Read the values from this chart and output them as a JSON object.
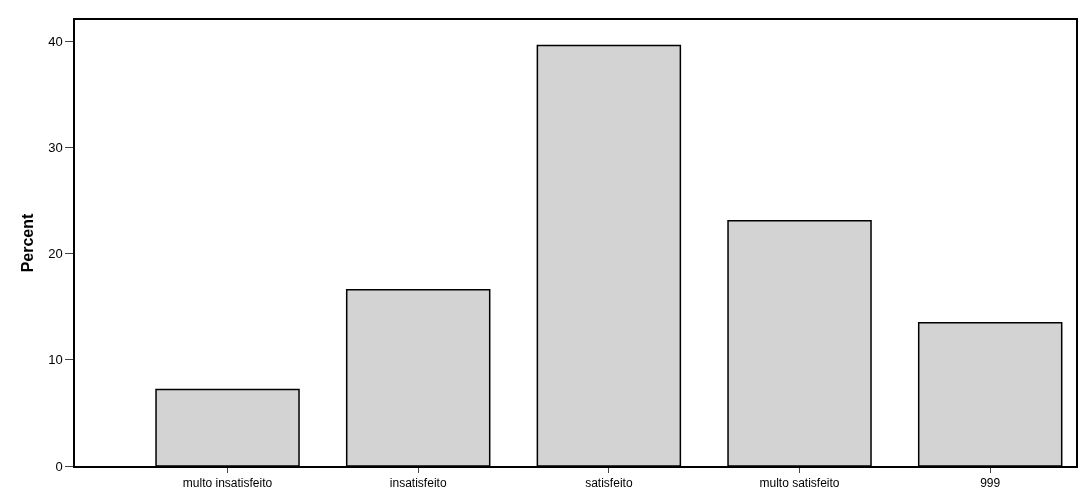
{
  "chart_data": {
    "type": "bar",
    "ylabel": "Percent",
    "categories": [
      "multo insatisfeito",
      "insatisfeito",
      "satisfeito",
      "multo satisfeito",
      "999"
    ],
    "values": [
      7.2,
      16.6,
      39.6,
      23.1,
      13.5
    ],
    "color": "#d3d3d3",
    "ylim": [
      0,
      42
    ],
    "yticks": [
      0,
      10,
      20,
      30,
      40
    ]
  }
}
